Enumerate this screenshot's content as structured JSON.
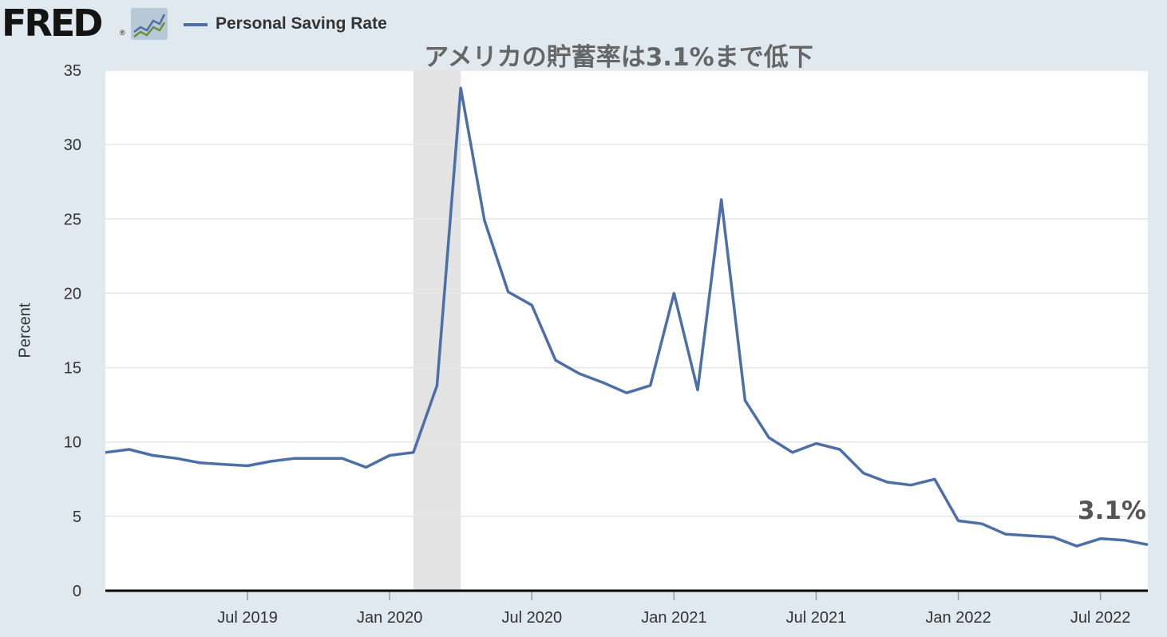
{
  "header": {
    "logo_text": "FRED",
    "logo_reg": "®",
    "logo_icon": "mini-chart-icon",
    "legend_label": "Personal Saving Rate"
  },
  "colors": {
    "line": "#4b6fa6",
    "background": "#e1e9f0",
    "plot": "#ffffff",
    "recession": "#e3e3e3",
    "grid": "#e6e6e6",
    "axis": "#000000"
  },
  "chart_data": {
    "type": "line",
    "title": "アメリカの貯蓄率は3.1%まで低下",
    "xlabel": "",
    "ylabel": "Percent",
    "ylim": [
      0,
      35
    ],
    "yticks": [
      0,
      5,
      10,
      15,
      20,
      25,
      30,
      35
    ],
    "xlim": [
      "2019-01",
      "2022-09"
    ],
    "xticks": [
      {
        "date": "2019-07",
        "label": "Jul 2019"
      },
      {
        "date": "2020-01",
        "label": "Jan 2020"
      },
      {
        "date": "2020-07",
        "label": "Jul 2020"
      },
      {
        "date": "2021-01",
        "label": "Jan 2021"
      },
      {
        "date": "2021-07",
        "label": "Jul 2021"
      },
      {
        "date": "2022-01",
        "label": "Jan 2022"
      },
      {
        "date": "2022-07",
        "label": "Jul 2022"
      }
    ],
    "grid": true,
    "recession_band": {
      "start": "2020-02",
      "end": "2020-04"
    },
    "annotation": {
      "text": "3.1%"
    },
    "series": [
      {
        "name": "Personal Saving Rate",
        "x": [
          "2019-01",
          "2019-02",
          "2019-03",
          "2019-04",
          "2019-05",
          "2019-06",
          "2019-07",
          "2019-08",
          "2019-09",
          "2019-10",
          "2019-11",
          "2019-12",
          "2020-01",
          "2020-02",
          "2020-03",
          "2020-04",
          "2020-05",
          "2020-06",
          "2020-07",
          "2020-08",
          "2020-09",
          "2020-10",
          "2020-11",
          "2020-12",
          "2021-01",
          "2021-02",
          "2021-03",
          "2021-04",
          "2021-05",
          "2021-06",
          "2021-07",
          "2021-08",
          "2021-09",
          "2021-10",
          "2021-11",
          "2021-12",
          "2022-01",
          "2022-02",
          "2022-03",
          "2022-04",
          "2022-05",
          "2022-06",
          "2022-07",
          "2022-08",
          "2022-09"
        ],
        "values": [
          9.3,
          9.5,
          9.1,
          8.9,
          8.6,
          8.5,
          8.4,
          8.7,
          8.9,
          8.9,
          8.9,
          8.3,
          9.1,
          9.3,
          13.8,
          33.8,
          24.9,
          20.1,
          19.2,
          15.5,
          14.6,
          14.0,
          13.3,
          13.8,
          20.0,
          13.5,
          26.3,
          12.8,
          10.3,
          9.3,
          9.9,
          9.5,
          7.9,
          7.3,
          7.1,
          7.5,
          4.7,
          4.5,
          3.8,
          3.7,
          3.6,
          3.0,
          3.5,
          3.4,
          3.1
        ]
      }
    ]
  }
}
